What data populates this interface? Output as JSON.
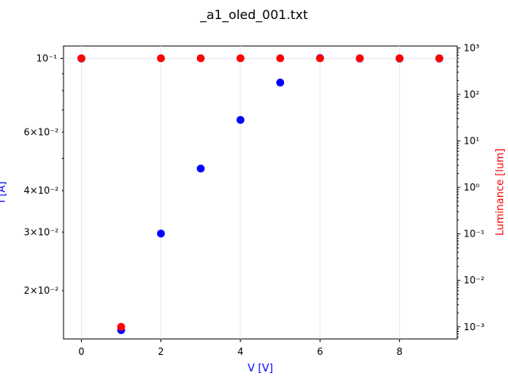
{
  "chart_data": {
    "type": "scatter",
    "title": "_a1_oled_001.txt",
    "xlabel": "V [V]",
    "ylabel_left": "I [A]",
    "ylabel_right": "Luminance [lum]",
    "colors": {
      "left": "#0000ff",
      "right": "#ff0000",
      "grid": "#e6e6fa"
    },
    "x_ticks": [
      "0",
      "2",
      "4",
      "6",
      "8"
    ],
    "left_axis": {
      "scale": "log",
      "ylim": [
        0.0143,
        0.109
      ],
      "major_ticks": [
        {
          "value": 0.1,
          "label": "10⁻¹"
        }
      ],
      "minor_ticks": [
        {
          "value": 0.06,
          "label": "6×10⁻²"
        },
        {
          "value": 0.04,
          "label": "4×10⁻²"
        },
        {
          "value": 0.03,
          "label": "3×10⁻²"
        },
        {
          "value": 0.02,
          "label": "2×10⁻²"
        }
      ],
      "unlabeled_minor_ticks": [
        0.05,
        0.07,
        0.08,
        0.09
      ]
    },
    "right_axis": {
      "scale": "log",
      "ylim": [
        0.00055,
        1100
      ],
      "major_ticks": [
        {
          "value": 1000,
          "label": "10³"
        },
        {
          "value": 100,
          "label": "10²"
        },
        {
          "value": 10,
          "label": "10¹"
        },
        {
          "value": 1,
          "label": "10⁰"
        },
        {
          "value": 0.1,
          "label": "10⁻¹"
        },
        {
          "value": 0.01,
          "label": "10⁻²"
        },
        {
          "value": 0.001,
          "label": "10⁻³"
        }
      ]
    },
    "series": [
      {
        "axis": "left",
        "color": "#0000ff",
        "x": [
          0,
          1,
          2,
          3,
          4,
          5,
          6,
          7,
          8,
          9
        ],
        "y": [
          0.1,
          0.0152,
          0.0297,
          0.0466,
          0.0653,
          0.0846,
          0.1003,
          0.1,
          0.1,
          0.1
        ]
      },
      {
        "axis": "right",
        "color": "#ff0000",
        "x": [
          0,
          1,
          2,
          3,
          4,
          5,
          6,
          7,
          8,
          9
        ],
        "y": [
          600,
          0.001,
          600,
          600,
          600,
          600,
          600,
          600,
          600,
          600
        ]
      }
    ]
  }
}
